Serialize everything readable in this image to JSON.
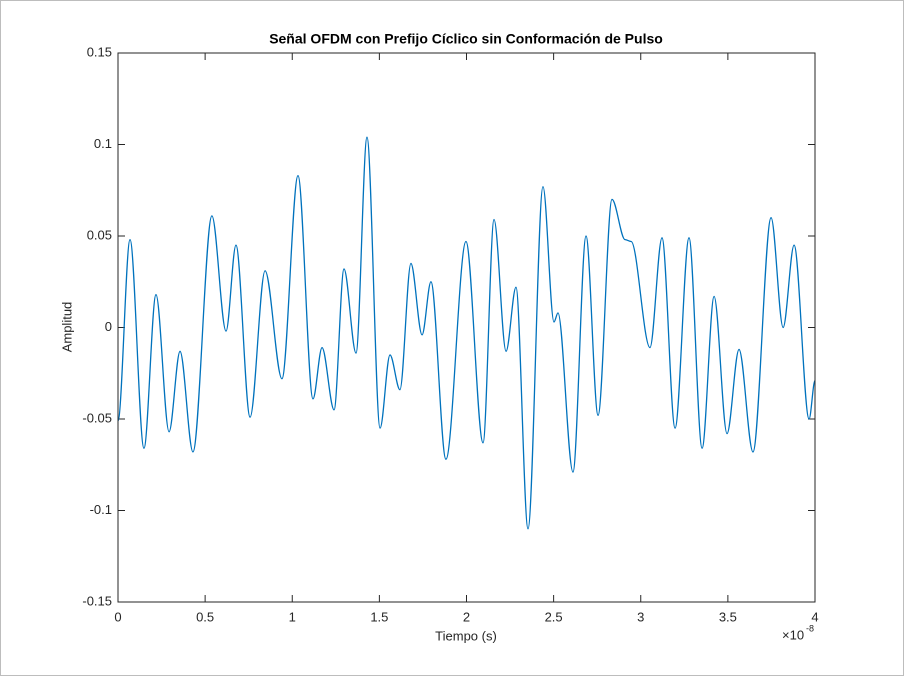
{
  "chart_data": {
    "type": "line",
    "title": "Señal OFDM con Prefijo Cíclico sin Conformación de Pulso",
    "x_label": "Tiempo (s)",
    "y_label": "Amplitud",
    "x_multiplier": "×10",
    "x_exponent": "-8",
    "xlim": [
      0,
      4
    ],
    "xticks": [
      0,
      0.5,
      1,
      1.5,
      2,
      2.5,
      3,
      3.5,
      4
    ],
    "ylim": [
      -0.15,
      0.15
    ],
    "yticks": [
      -0.15,
      -0.1,
      -0.05,
      0,
      0.05,
      0.1,
      0.15
    ],
    "grid": false,
    "series": [
      {
        "color": "#0072bd",
        "x": [
          0,
          0.069,
          0.149,
          0.218,
          0.293,
          0.356,
          0.43,
          0.539,
          0.62,
          0.677,
          0.758,
          0.844,
          0.941,
          1.033,
          1.119,
          1.171,
          1.24,
          1.297,
          1.366,
          1.429,
          1.504,
          1.561,
          1.618,
          1.681,
          1.745,
          1.796,
          1.882,
          1.997,
          2.095,
          2.158,
          2.227,
          2.284,
          2.353,
          2.439,
          2.502,
          2.525,
          2.611,
          2.686,
          2.755,
          2.835,
          2.91,
          2.945,
          3.053,
          3.122,
          3.197,
          3.277,
          3.352,
          3.421,
          3.495,
          3.564,
          3.644,
          3.748,
          3.817,
          3.88,
          3.966,
          4
        ],
        "values": [
          -0.051,
          0.048,
          -0.066,
          0.018,
          -0.057,
          -0.013,
          -0.068,
          0.061,
          -0.002,
          0.045,
          -0.049,
          0.031,
          -0.028,
          0.083,
          -0.039,
          -0.011,
          -0.045,
          0.032,
          -0.014,
          0.104,
          -0.055,
          -0.015,
          -0.034,
          0.035,
          -0.004,
          0.025,
          -0.072,
          0.047,
          -0.063,
          0.059,
          -0.013,
          0.022,
          -0.11,
          0.077,
          0.003,
          0.008,
          -0.079,
          0.05,
          -0.048,
          0.07,
          0.048,
          0.047,
          -0.011,
          0.049,
          -0.055,
          0.049,
          -0.066,
          0.017,
          -0.058,
          -0.012,
          -0.068,
          0.06,
          0,
          0.045,
          -0.05,
          -0.029
        ]
      }
    ]
  }
}
